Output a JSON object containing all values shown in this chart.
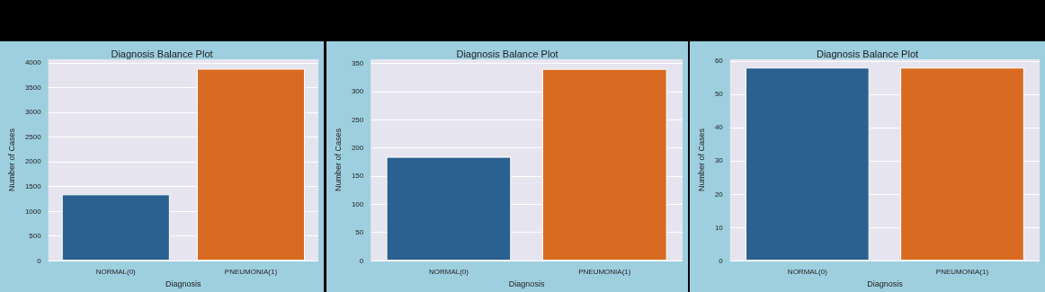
{
  "chart_data": [
    {
      "type": "bar",
      "title": "Diagnosis Balance Plot",
      "xlabel": "Diagnosis",
      "ylabel": "Number of Cases",
      "categories": [
        "NORMAL(0)",
        "PNEUMONIA(1)"
      ],
      "values": [
        1340,
        3880
      ],
      "colors": [
        "#2a6190",
        "#d86b21"
      ],
      "ylim": [
        0,
        4070
      ],
      "yticks": [
        0,
        500,
        1000,
        1500,
        2000,
        2500,
        3000,
        3500,
        4000
      ],
      "grid": "y"
    },
    {
      "type": "bar",
      "title": "Diagnosis Balance Plot",
      "xlabel": "Diagnosis",
      "ylabel": "Number of Cases",
      "categories": [
        "NORMAL(0)",
        "PNEUMONIA(1)"
      ],
      "values": [
        184,
        340
      ],
      "colors": [
        "#2a6190",
        "#d86b21"
      ],
      "ylim": [
        0,
        357
      ],
      "yticks": [
        0,
        50,
        100,
        150,
        200,
        250,
        300,
        350
      ],
      "grid": "y"
    },
    {
      "type": "bar",
      "title": "Diagnosis Balance Plot",
      "xlabel": "Diagnosis",
      "ylabel": "Number of Cases",
      "categories": [
        "NORMAL(0)",
        "PNEUMONIA(1)"
      ],
      "values": [
        58,
        58
      ],
      "colors": [
        "#2a6190",
        "#d86b21"
      ],
      "ylim": [
        0,
        60.5
      ],
      "yticks": [
        0,
        10,
        20,
        30,
        40,
        50,
        60
      ],
      "grid": "y"
    }
  ]
}
